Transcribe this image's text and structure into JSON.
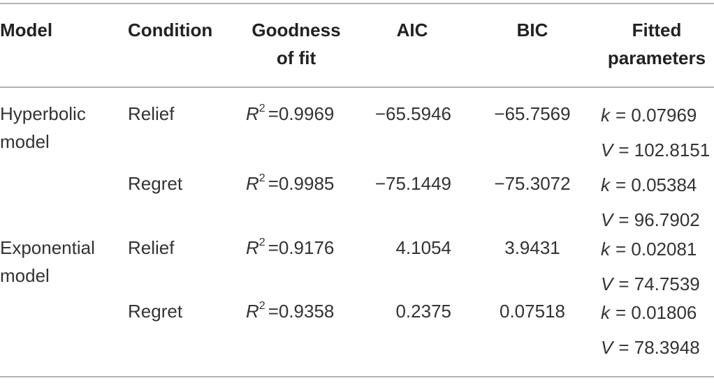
{
  "table": {
    "headers": [
      [
        "Model"
      ],
      [
        "Condition"
      ],
      [
        "Goodness",
        "of fit"
      ],
      [
        "AIC"
      ],
      [
        "BIC"
      ],
      [
        "Fitted",
        "parameters"
      ]
    ],
    "groups": [
      {
        "model": [
          "Hyperbolic",
          "model"
        ],
        "rows": [
          {
            "condition": "Relief",
            "fit": {
              "var": "R",
              "sup": "2",
              "rest": "=0.9969"
            },
            "aic": "−65.5946",
            "bic": "−65.7569",
            "params": [
              {
                "var": "k",
                "rest": "= 0.07969"
              },
              {
                "var": "V",
                "rest": "= 102.8151"
              }
            ]
          },
          {
            "condition": "Regret",
            "fit": {
              "var": "R",
              "sup": "2",
              "rest": "=0.9985"
            },
            "aic": "−75.1449",
            "bic": "−75.3072",
            "params": [
              {
                "var": "k",
                "rest": "= 0.05384"
              },
              {
                "var": "V",
                "rest": "= 96.7902"
              }
            ]
          }
        ]
      },
      {
        "model": [
          "Exponential",
          "model"
        ],
        "rows": [
          {
            "condition": "Relief",
            "fit": {
              "var": "R",
              "sup": "2",
              "rest": "=0.9176"
            },
            "aic": "4.1054",
            "bic": "3.9431",
            "params": [
              {
                "var": "k",
                "rest": "= 0.02081"
              },
              {
                "var": "V",
                "rest": "= 74.7539"
              }
            ]
          },
          {
            "condition": "Regret",
            "fit": {
              "var": "R",
              "sup": "2",
              "rest": "=0.9358"
            },
            "aic": "0.2375",
            "bic": "0.07518",
            "params": [
              {
                "var": "k",
                "rest": "= 0.01806"
              },
              {
                "var": "V",
                "rest": "= 78.3948"
              }
            ]
          }
        ]
      }
    ]
  }
}
